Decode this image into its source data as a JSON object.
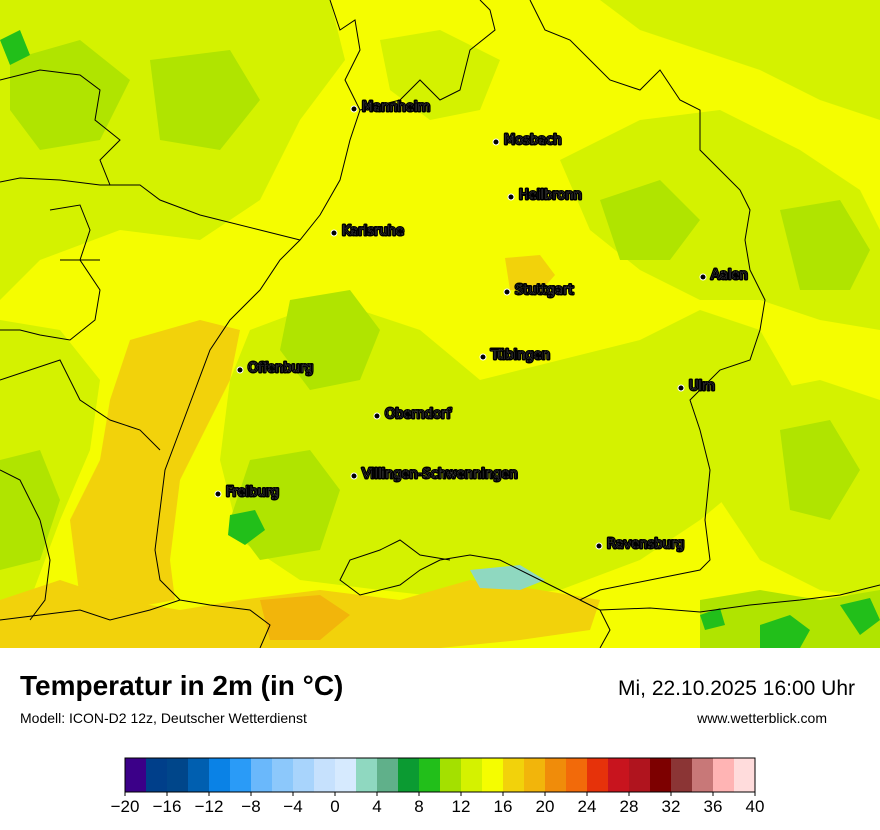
{
  "map": {
    "colors": {
      "yellow": "#f5fd00",
      "lime": "#d4f200",
      "lightgreen": "#b0e400",
      "green": "#22bf1a",
      "gold": "#f2d20b",
      "water": "#8fd8c0"
    },
    "cities": [
      {
        "name": "Mannheim"
      },
      {
        "name": "Mosbach"
      },
      {
        "name": "Heilbronn"
      },
      {
        "name": "Karlsruhe"
      },
      {
        "name": "Aalen"
      },
      {
        "name": "Stuttgart"
      },
      {
        "name": "Tübingen"
      },
      {
        "name": "Offenburg"
      },
      {
        "name": "Ulm"
      },
      {
        "name": "Oberndorf"
      },
      {
        "name": "Villingen-Schwenningen"
      },
      {
        "name": "Freiburg"
      },
      {
        "name": "Ravensburg"
      }
    ]
  },
  "footer": {
    "title": "Temperatur in 2m (in °C)",
    "model": "Modell: ICON-D2 12z, Deutscher Wetterdienst",
    "datetime": "Mi, 22.10.2025 16:00 Uhr",
    "website": "www.wetterblick.com"
  },
  "legend": {
    "colors": [
      "#3b0088",
      "#003f8a",
      "#00468a",
      "#005fb0",
      "#0a82e6",
      "#2a9bf7",
      "#6ab8fb",
      "#8cc8fb",
      "#a8d4fc",
      "#c6e1fd",
      "#d6eafe",
      "#8fd8c0",
      "#60b08a",
      "#0b9b32",
      "#22bf1a",
      "#a4e000",
      "#d4f200",
      "#f5fd00",
      "#f2d20b",
      "#f2b50b",
      "#f08c0a",
      "#f26a0a",
      "#e6320a",
      "#c8141e",
      "#b0141e",
      "#7d0000",
      "#8b3535",
      "#c87878",
      "#ffb4b4",
      "#ffdcdc"
    ],
    "ticks": [
      "−20",
      "−16",
      "−12",
      "−8",
      "−4",
      "0",
      "4",
      "8",
      "12",
      "16",
      "20",
      "24",
      "28",
      "32",
      "36",
      "40"
    ]
  }
}
